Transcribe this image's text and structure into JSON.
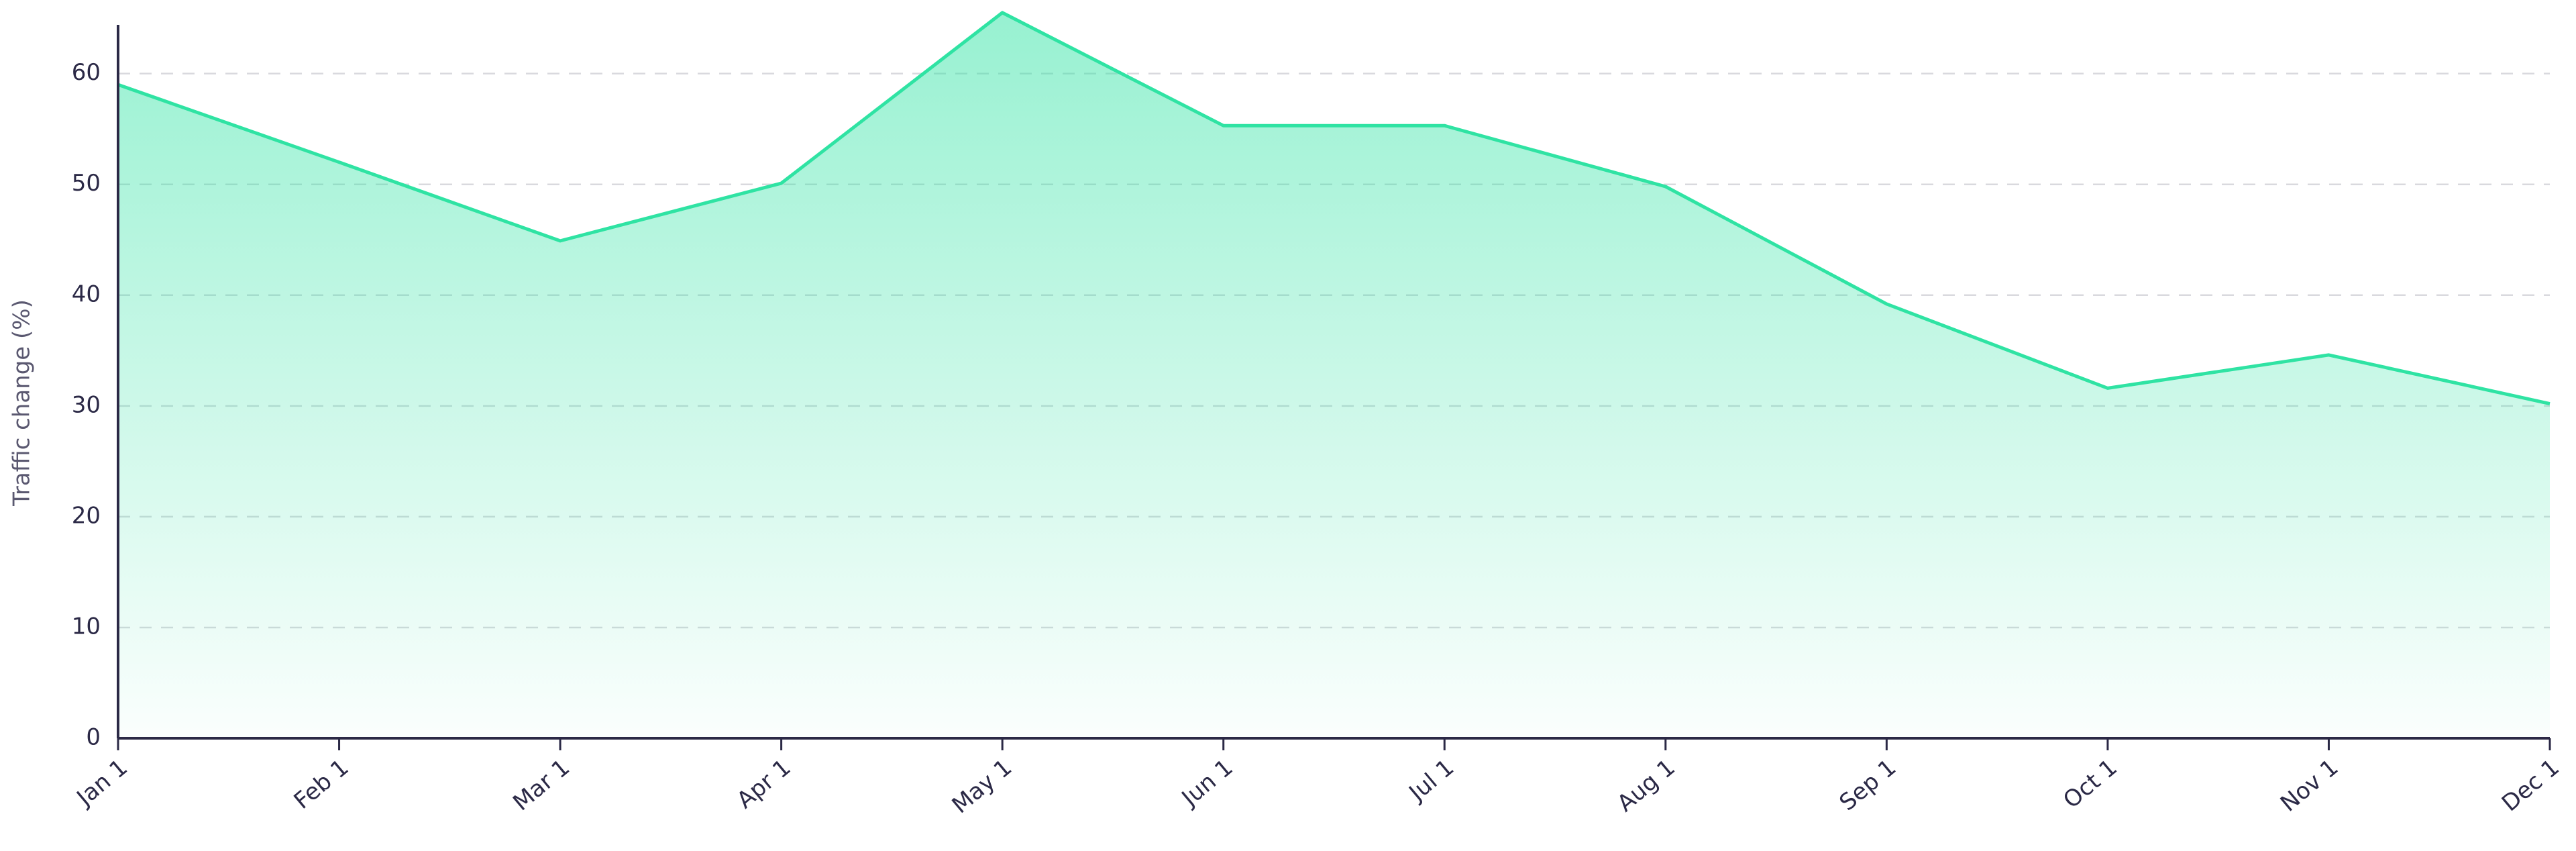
{
  "chart_data": {
    "type": "area",
    "y_label": "Traffic change (%)",
    "categories": [
      "Jan 1",
      "Feb 1",
      "Mar 1",
      "Apr 1",
      "May 1",
      "Jun 1",
      "Jul 1",
      "Aug 1",
      "Sep 1",
      "Oct 1",
      "Nov 1",
      "Dec 1"
    ],
    "values": [
      59,
      52,
      44.9,
      50.1,
      65.5,
      55.3,
      55.3,
      49.8,
      39.2,
      31.6,
      34.6,
      30.2
    ],
    "color": "#2fe3a3",
    "ylim": [
      0,
      64.4
    ],
    "yticks": [
      0,
      10,
      20,
      30,
      40,
      50,
      60
    ],
    "grid": true
  }
}
